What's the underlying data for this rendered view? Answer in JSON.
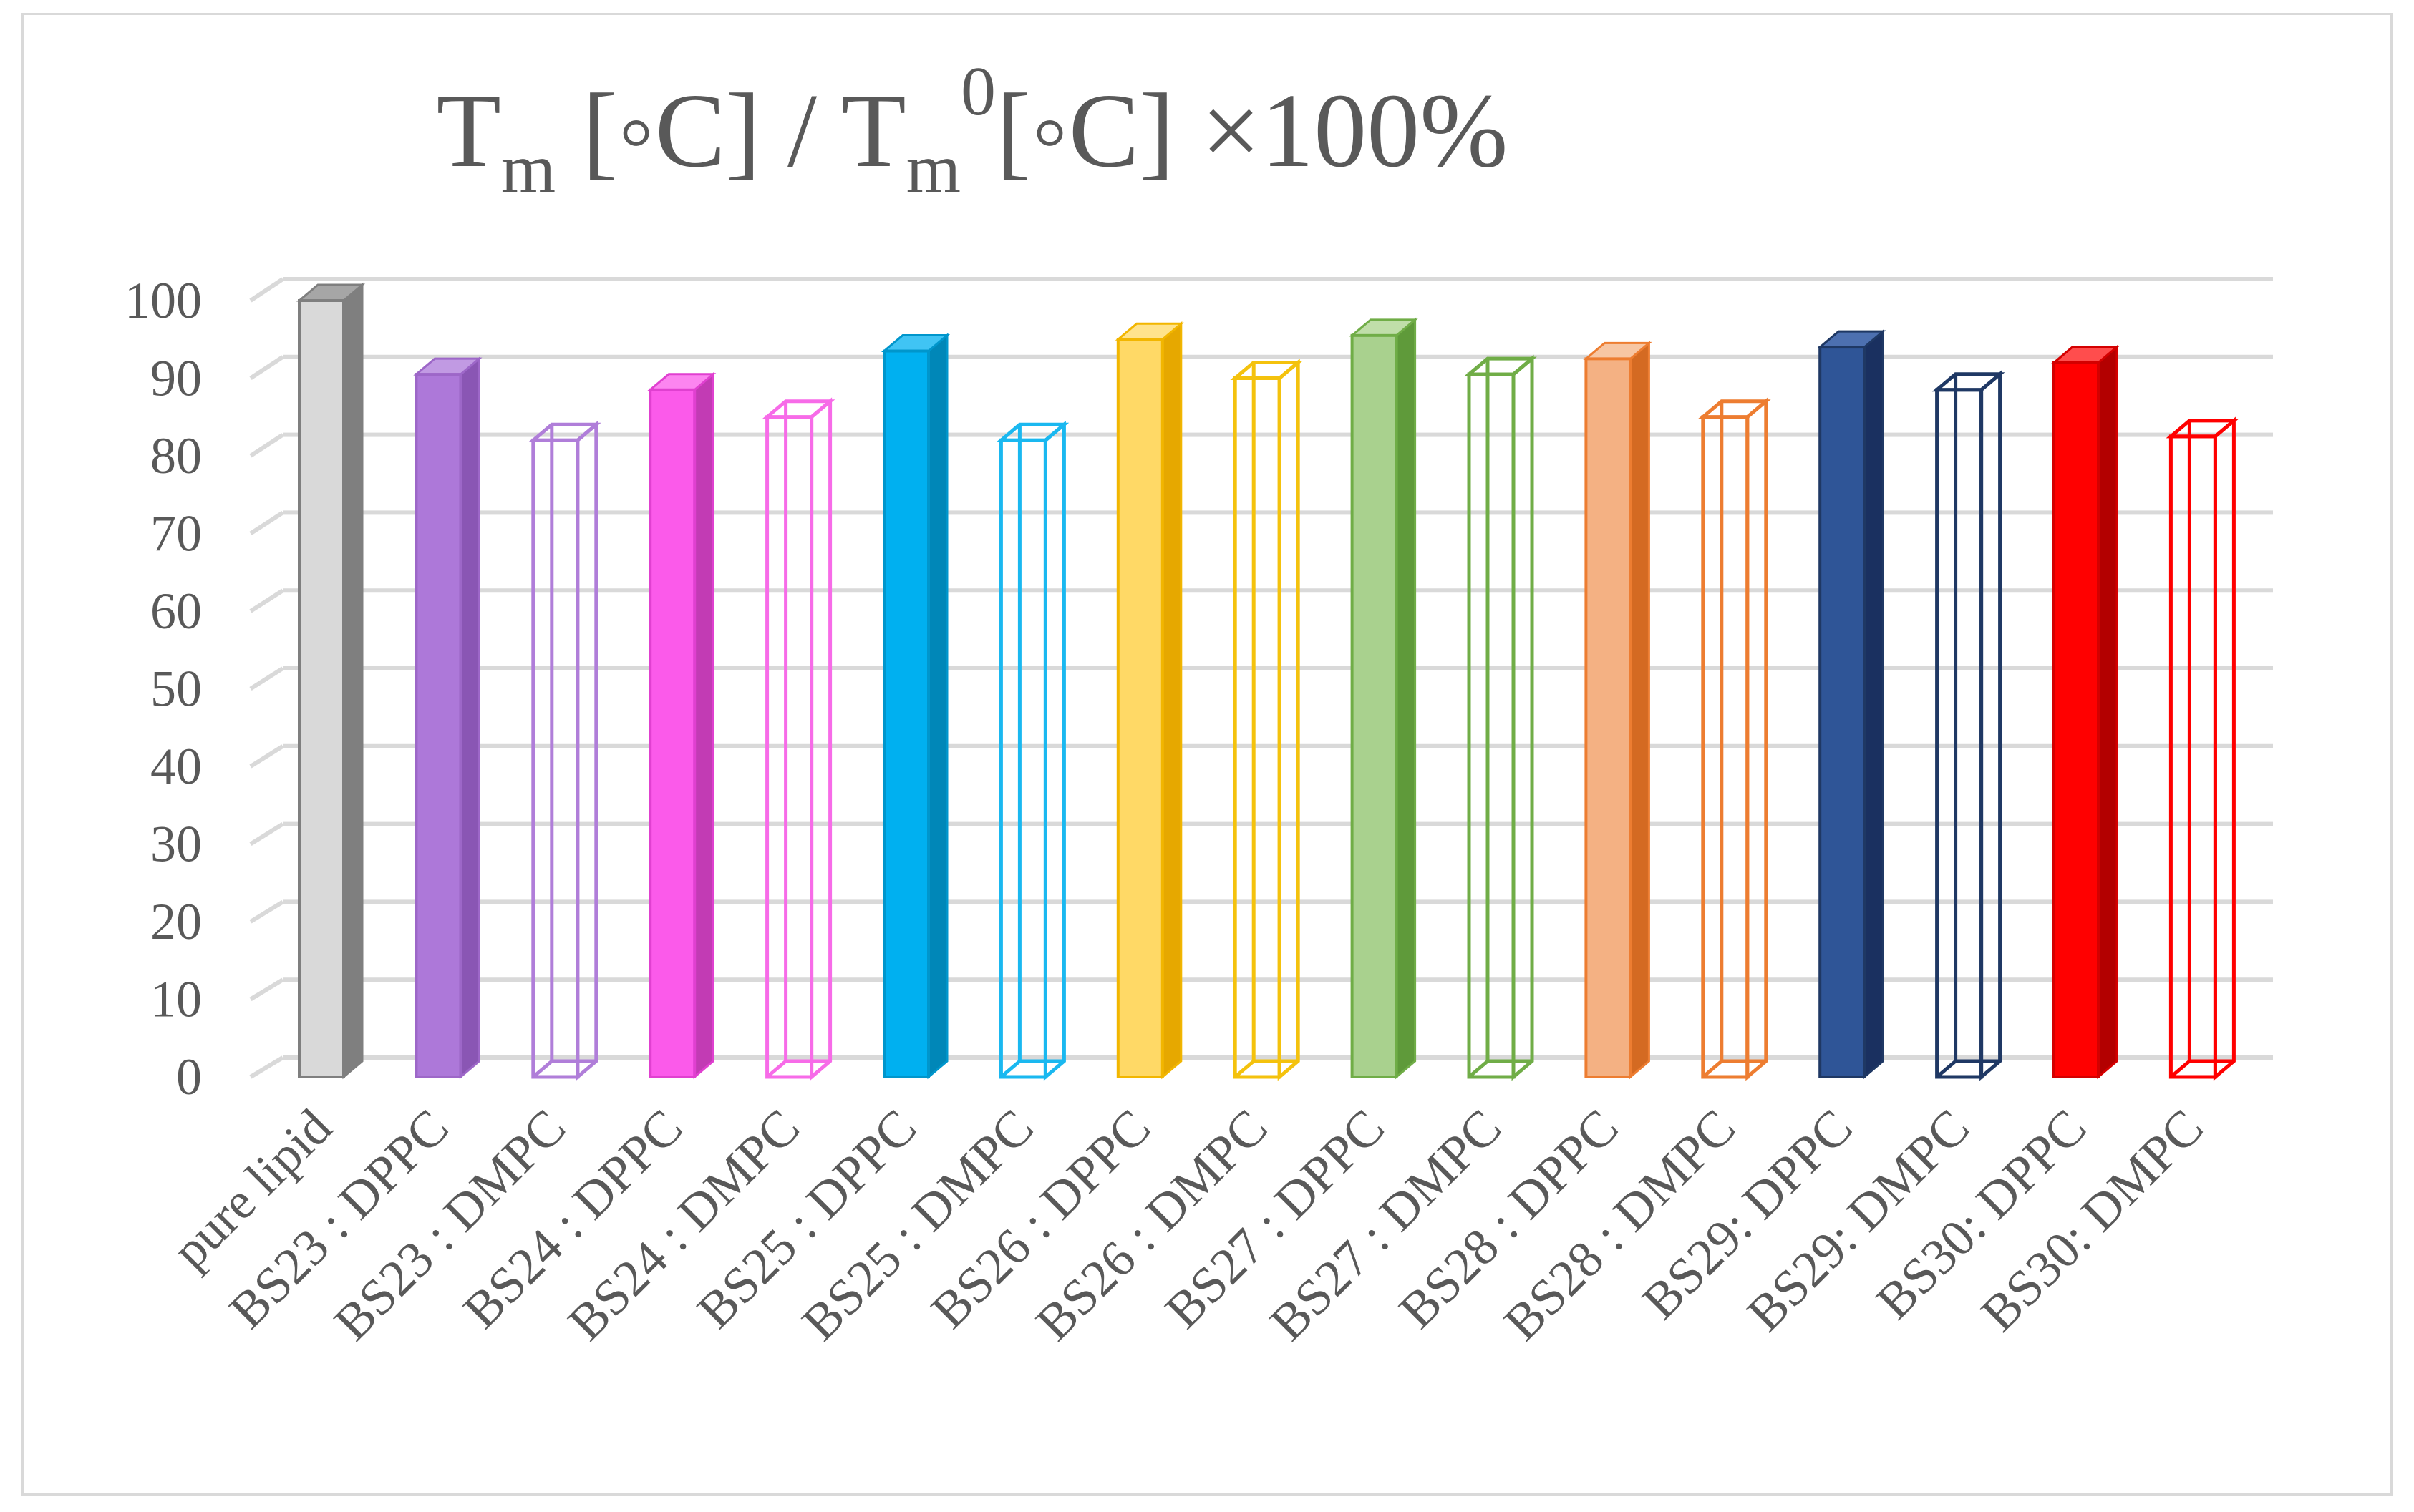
{
  "chart_data": {
    "type": "bar",
    "title": {
      "main": "T",
      "sub": "m",
      "part2": " [◦C] / T",
      "sub2": "m",
      "sup2": "0",
      "part3": "[◦C] ×100%"
    },
    "xlabel": "",
    "ylabel": "",
    "ylim": [
      0,
      100
    ],
    "yticks": [
      "0",
      "10",
      "20",
      "30",
      "40",
      "50",
      "60",
      "70",
      "80",
      "90",
      "100"
    ],
    "grid": true,
    "legend": "none",
    "categories": [
      "pure lipid",
      "BS23 : DPPC",
      "BS23 : DMPC",
      "BS24 : DPPC",
      "BS24 : DMPC",
      "BS25 : DPPC",
      "BS25 : DMPC",
      "BS26 : DPPC",
      "BS26 : DMPC",
      "BS27 : DPPC",
      "BS27 : DMPC",
      "BS28 : DPPC",
      "BS28 : DMPC",
      "BS29: DPPC",
      "BS29: DMPC",
      "BS30: DPPC",
      "BS30: DMPC"
    ],
    "values": [
      100,
      90.5,
      82,
      88.5,
      85,
      93.5,
      82,
      95,
      90,
      95.5,
      90.5,
      92.5,
      85,
      94,
      88.5,
      92,
      82.5
    ],
    "styles": [
      {
        "fill": "#d9d9d9",
        "stroke": "#7f7f7f",
        "side": "#7f7f7f",
        "top": "#a6a6a6",
        "hollow": false
      },
      {
        "fill": "#ad78d9",
        "stroke": "#9d67c8",
        "side": "#8a56b4",
        "top": "#c19ae3",
        "hollow": false
      },
      {
        "fill": "none",
        "stroke": "#b07ed9",
        "hollow": true
      },
      {
        "fill": "#fb5aea",
        "stroke": "#e040d0",
        "side": "#c23bb4",
        "top": "#fc85f0",
        "hollow": false
      },
      {
        "fill": "none",
        "stroke": "#f76be8",
        "hollow": true
      },
      {
        "fill": "#00b0f0",
        "stroke": "#0096cc",
        "side": "#0087b8",
        "top": "#40c4f4",
        "hollow": false
      },
      {
        "fill": "none",
        "stroke": "#1ab8f0",
        "hollow": true
      },
      {
        "fill": "#ffd966",
        "stroke": "#f2b600",
        "side": "#e6a800",
        "top": "#ffe38c",
        "hollow": false
      },
      {
        "fill": "none",
        "stroke": "#f4c20d",
        "hollow": true
      },
      {
        "fill": "#a9d18e",
        "stroke": "#70ad47",
        "side": "#5f9a3a",
        "top": "#c0dea9",
        "hollow": false
      },
      {
        "fill": "none",
        "stroke": "#70ad47",
        "hollow": true
      },
      {
        "fill": "#f4b183",
        "stroke": "#ed7d31",
        "side": "#d46a22",
        "top": "#f7c6a3",
        "hollow": false
      },
      {
        "fill": "none",
        "stroke": "#ed7d31",
        "hollow": true
      },
      {
        "fill": "#2f5597",
        "stroke": "#1f3864",
        "side": "#1a3060",
        "top": "#4d70b0",
        "hollow": false
      },
      {
        "fill": "none",
        "stroke": "#1f3864",
        "hollow": true
      },
      {
        "fill": "#ff0000",
        "stroke": "#d40000",
        "side": "#b30000",
        "top": "#ff4d4d",
        "hollow": false
      },
      {
        "fill": "none",
        "stroke": "#ff0000",
        "hollow": true
      }
    ]
  }
}
